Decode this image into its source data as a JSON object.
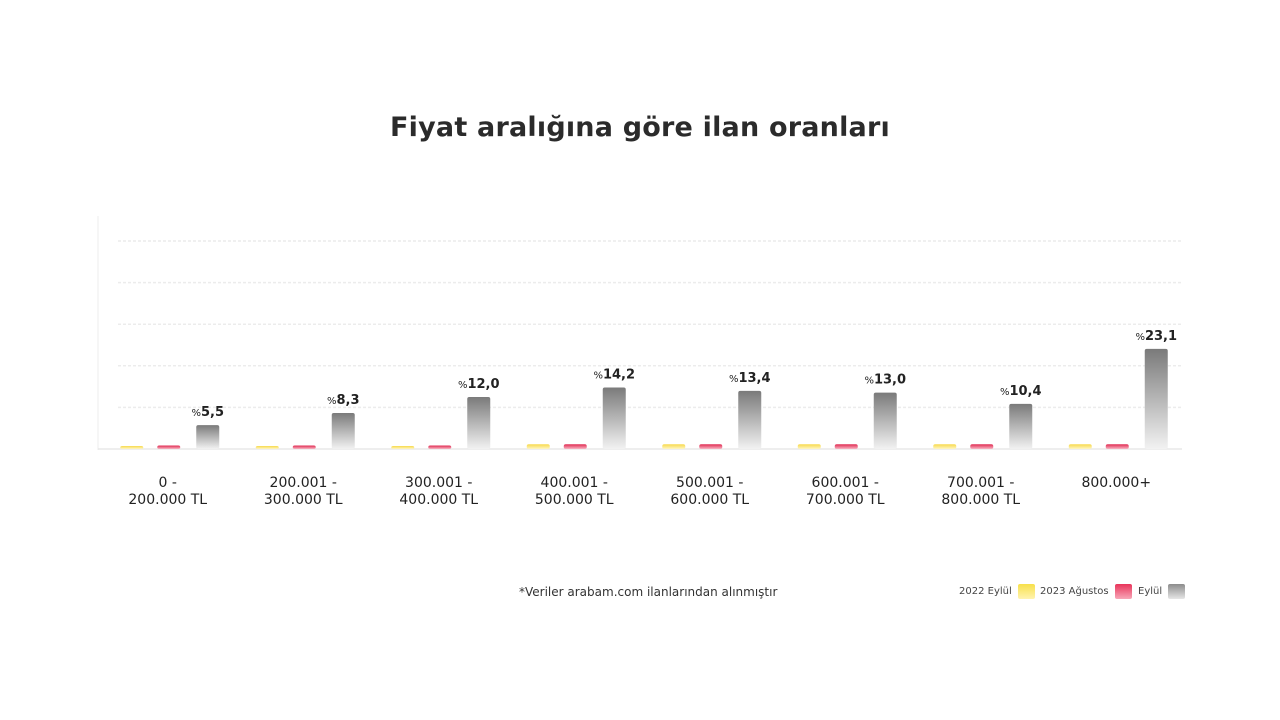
{
  "title": "Fiyat aralığına göre ilan oranları",
  "note": "*Veriler arabam.com ilanlarından alınmıştır",
  "legend": [
    {
      "label": "2022 Eylül",
      "color": "#f7e04a"
    },
    {
      "label": "2023 Ağustos",
      "color": "#e8345a"
    },
    {
      "label": "Eylül",
      "color": "#8c8c8c"
    }
  ],
  "categories": [
    {
      "line1": "0 -",
      "line2": "200.000 TL"
    },
    {
      "line1": "200.001 -",
      "line2": "300.000 TL"
    },
    {
      "line1": "300.001 -",
      "line2": "400.000 TL"
    },
    {
      "line1": "400.001 -",
      "line2": "500.000 TL"
    },
    {
      "line1": "500.001 -",
      "line2": "600.000 TL"
    },
    {
      "line1": "600.001 -",
      "line2": "700.000 TL"
    },
    {
      "line1": "700.001 -",
      "line2": "800.000 TL"
    },
    {
      "line1": "800.000+",
      "line2": ""
    }
  ],
  "chart_data": {
    "type": "bar",
    "title": "Fiyat aralığına göre ilan oranları",
    "categories": [
      "0 - 200.000 TL",
      "200.001 - 300.000 TL",
      "300.001 - 400.000 TL",
      "400.001 - 500.000 TL",
      "500.001 - 600.000 TL",
      "600.001 - 700.000 TL",
      "700.001 - 800.000 TL",
      "800.000+"
    ],
    "series": [
      {
        "name": "2022 Eylül",
        "values": [
          0.7,
          0.7,
          0.6,
          1.1,
          1.1,
          1.1,
          1.1,
          1.1
        ],
        "color": "#f7e04a"
      },
      {
        "name": "2023 Ağustos",
        "values": [
          0.8,
          0.8,
          0.8,
          1.1,
          1.1,
          1.1,
          1.1,
          1.1
        ],
        "color": "#e8345a"
      },
      {
        "name": "Eylül",
        "values": [
          5.5,
          8.3,
          12.0,
          14.2,
          13.4,
          13.0,
          10.4,
          23.1
        ],
        "color": "#8c8c8c",
        "data_labels": [
          "5,5",
          "8,3",
          "12,0",
          "14,2",
          "13,4",
          "13,0",
          "10,4",
          "23,1"
        ]
      }
    ],
    "label_prefix": "%",
    "ylim": [
      0,
      48
    ],
    "grid": true,
    "legend_position": "bottom-right",
    "xlabel": "",
    "ylabel": ""
  }
}
